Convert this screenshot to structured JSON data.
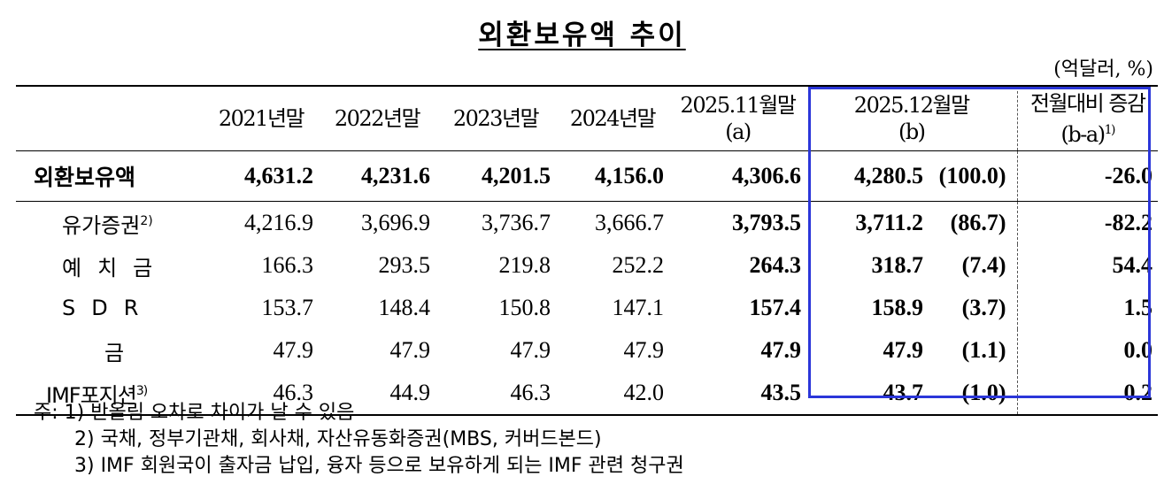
{
  "title": "외환보유액 추이",
  "unit": "(억달러, %)",
  "columns": {
    "c1": "2021년말",
    "c2": "2022년말",
    "c3": "2023년말",
    "c4": "2024년말",
    "c5": "2025.11월말",
    "c5_sub": "(a)",
    "c6": "2025.12월말",
    "c6_sub": "(b)",
    "c7": "전월대비 증감",
    "c7_sub": "(b-a)",
    "c7_note": "1)"
  },
  "rows": [
    {
      "label": "외환보유액",
      "note": "",
      "v": [
        "4,631.2",
        "4,231.6",
        "4,201.5",
        "4,156.0",
        "4,306.6",
        "4,280.5"
      ],
      "share": "(100.0)",
      "change": "-26.0"
    },
    {
      "label": "유가증권",
      "note": "2)",
      "v": [
        "4,216.9",
        "3,696.9",
        "3,736.7",
        "3,666.7",
        "3,793.5",
        "3,711.2"
      ],
      "share": "(86.7)",
      "change": "-82.2"
    },
    {
      "label": "예치금",
      "note": "",
      "v": [
        "166.3",
        "293.5",
        "219.8",
        "252.2",
        "264.3",
        "318.7"
      ],
      "share": "(7.4)",
      "change": "54.4"
    },
    {
      "label": "SDR",
      "note": "",
      "v": [
        "153.7",
        "148.4",
        "150.8",
        "147.1",
        "157.4",
        "158.9"
      ],
      "share": "(3.7)",
      "change": "1.5"
    },
    {
      "label": "금",
      "note": "",
      "v": [
        "47.9",
        "47.9",
        "47.9",
        "47.9",
        "47.9",
        "47.9"
      ],
      "share": "(1.1)",
      "change": "0.0"
    },
    {
      "label": "IMF포지션",
      "note": "3)",
      "v": [
        "46.3",
        "44.9",
        "46.3",
        "42.0",
        "43.5",
        "43.7"
      ],
      "share": "(1.0)",
      "change": "0.2"
    }
  ],
  "notes": [
    "주: 1) 반올림 오차로 차이가 날 수 있음",
    "2) 국채, 정부기관채, 회사채, 자산유동화증권(MBS, 커버드본드)",
    "3) IMF 회원국이 출자금 납입, 융자 등으로 보유하게 되는 IMF 관련 청구권"
  ],
  "highlight_color": "#2b36d9"
}
